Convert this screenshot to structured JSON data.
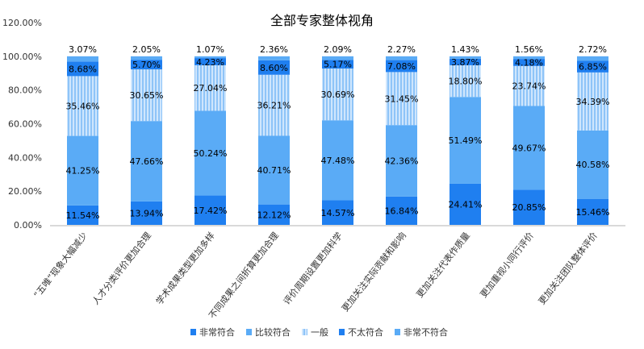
{
  "chart_data": {
    "type": "bar",
    "stacked": true,
    "title": "全部专家整体视角",
    "xlabel": "",
    "ylabel": "",
    "ylim": [
      0,
      120
    ],
    "yticks": [
      "0.00%",
      "20.00%",
      "40.00%",
      "60.00%",
      "80.00%",
      "100.00%",
      "120.00%"
    ],
    "legend_position": "bottom",
    "categories": [
      "“五唯”现象大幅减少",
      "人才分类评价更加合理",
      "学术成果类型更加多样",
      "不同成果之间折算更加合理",
      "评价周期设置更加科学",
      "更加关注实际贡献和影响",
      "更加关注代表作质量",
      "更加重视小同行评价",
      "更加关注团队整体评价"
    ],
    "series": [
      {
        "name": "非常符合",
        "color": "#1f7ff0",
        "pattern": false,
        "values": [
          11.54,
          13.94,
          17.42,
          12.12,
          14.57,
          16.84,
          24.41,
          20.85,
          15.46
        ]
      },
      {
        "name": "比较符合",
        "color": "#5aabf6",
        "pattern": false,
        "values": [
          41.25,
          47.66,
          50.24,
          40.71,
          47.48,
          42.36,
          51.49,
          49.67,
          40.58
        ]
      },
      {
        "name": "一般",
        "color": "#9fcefa",
        "pattern": true,
        "values": [
          35.46,
          30.65,
          27.04,
          36.21,
          30.69,
          31.45,
          18.8,
          23.74,
          34.39
        ]
      },
      {
        "name": "不太符合",
        "color": "#1f7ff0",
        "pattern": false,
        "values": [
          8.68,
          5.7,
          4.23,
          8.6,
          5.17,
          7.08,
          3.87,
          4.18,
          6.85
        ]
      },
      {
        "name": "非常不符合",
        "color": "#5aabf6",
        "pattern": false,
        "values": [
          3.07,
          2.05,
          1.07,
          2.36,
          2.09,
          2.27,
          1.43,
          1.56,
          2.72
        ]
      }
    ]
  }
}
